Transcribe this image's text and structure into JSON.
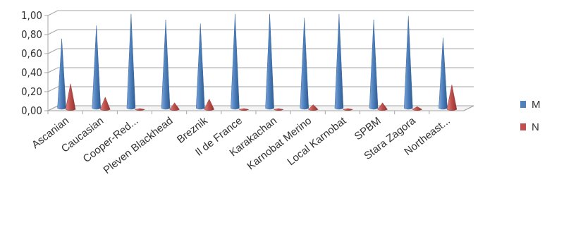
{
  "chart_data": {
    "type": "bar",
    "style": "3d-cone",
    "categories": [
      "Ascanian",
      "Caucasian",
      "Cooper-Red...",
      "Pleven Blackhead",
      "Breznik",
      "Il de France",
      "Karakachan",
      "Karnobat Merino",
      "Local Karnobat",
      "SPBM",
      "Stara Zagora",
      "Northeast..."
    ],
    "series": [
      {
        "name": "M",
        "color": "#4F81BD",
        "values": [
          0.73,
          0.87,
          0.99,
          0.93,
          0.89,
          0.99,
          0.99,
          0.95,
          0.99,
          0.93,
          0.97,
          0.74
        ]
      },
      {
        "name": "N",
        "color": "#C0504D",
        "values": [
          0.27,
          0.13,
          0.01,
          0.07,
          0.11,
          0.01,
          0.01,
          0.05,
          0.01,
          0.07,
          0.03,
          0.26
        ]
      }
    ],
    "y_ticks": [
      "0,00",
      "0,20",
      "0,40",
      "0,60",
      "0,80",
      "1,00"
    ],
    "ylim": [
      0,
      1
    ],
    "grid": true,
    "legend_position": "right",
    "title": "",
    "xlabel": "",
    "ylabel": ""
  }
}
